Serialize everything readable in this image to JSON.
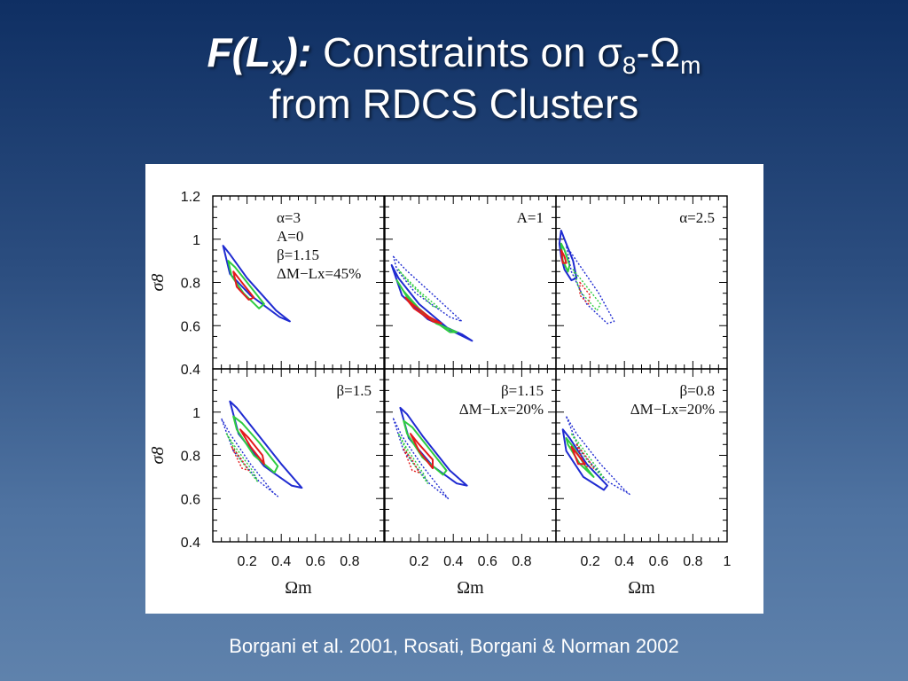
{
  "slide": {
    "title_emph": "F(L",
    "title_emph_sub": "x",
    "title_emph_end": "):",
    "title_text": " Constraints on σ",
    "title_sub1": "8",
    "title_dash": "-Ω",
    "title_sub2": "m",
    "title_line2": "from RDCS Clusters",
    "caption": "Borgani et al. 2001, Rosati, Borgani & Norman 2002"
  },
  "colors": {
    "confidence_inner": "#e41a1c",
    "confidence_mid": "#2ecc40",
    "confidence_outer": "#1f2bd1",
    "axis": "#000000"
  },
  "chart_data": {
    "type": "contour",
    "layout": "2x3 grid",
    "xlabel": "Ωm",
    "ylabel": "σ8",
    "xlim": [
      0,
      1
    ],
    "ylim": [
      0.4,
      1.2
    ],
    "xticklabels": [
      "0.2",
      "0.4",
      "0.6",
      "0.8"
    ],
    "xticklabels_last": [
      "0.2",
      "0.4",
      "0.6",
      "0.8",
      "1"
    ],
    "yticklabels": [
      "0.4",
      "0.6",
      "0.8",
      "1",
      "1.2"
    ],
    "yticklabels_lower": [
      "0.4",
      "0.6",
      "0.8",
      "1"
    ],
    "panels": [
      {
        "labels": [
          "α=3",
          "A=0",
          "β=1.15",
          "ΔM−Lx=45%"
        ],
        "label_pos": "top-left",
        "contours": [
          {
            "level": "outer",
            "style": "solid",
            "color": "#1f2bd1",
            "omega_m": [
              0.06,
              0.1,
              0.2,
              0.37,
              0.45,
              0.39,
              0.22,
              0.1,
              0.06
            ],
            "sigma8": [
              0.97,
              0.93,
              0.82,
              0.67,
              0.62,
              0.64,
              0.74,
              0.84,
              0.97
            ]
          },
          {
            "level": "mid",
            "style": "solid",
            "color": "#2ecc40",
            "omega_m": [
              0.09,
              0.13,
              0.22,
              0.3,
              0.27,
              0.18,
              0.11,
              0.09
            ],
            "sigma8": [
              0.9,
              0.87,
              0.78,
              0.7,
              0.68,
              0.75,
              0.83,
              0.9
            ]
          },
          {
            "level": "inner",
            "style": "solid",
            "color": "#e41a1c",
            "omega_m": [
              0.12,
              0.17,
              0.24,
              0.21,
              0.14,
              0.12
            ],
            "sigma8": [
              0.85,
              0.8,
              0.73,
              0.72,
              0.78,
              0.85
            ]
          }
        ]
      },
      {
        "labels": [
          "A=1"
        ],
        "label_pos": "top-right",
        "contours": [
          {
            "level": "outer",
            "style": "solid",
            "color": "#1f2bd1",
            "omega_m": [
              0.04,
              0.08,
              0.2,
              0.38,
              0.51,
              0.45,
              0.25,
              0.1,
              0.04
            ],
            "sigma8": [
              0.88,
              0.82,
              0.7,
              0.58,
              0.53,
              0.56,
              0.63,
              0.74,
              0.88
            ]
          },
          {
            "level": "mid",
            "style": "solid",
            "color": "#2ecc40",
            "omega_m": [
              0.07,
              0.11,
              0.22,
              0.38,
              0.42,
              0.3,
              0.14,
              0.07
            ],
            "sigma8": [
              0.81,
              0.76,
              0.66,
              0.57,
              0.57,
              0.61,
              0.72,
              0.81
            ]
          },
          {
            "level": "inner",
            "style": "solid",
            "color": "#e41a1c",
            "omega_m": [
              0.12,
              0.16,
              0.26,
              0.33,
              0.28,
              0.17,
              0.12
            ],
            "sigma8": [
              0.73,
              0.7,
              0.64,
              0.61,
              0.62,
              0.68,
              0.73
            ]
          },
          {
            "level": "outer-ref",
            "style": "dotted",
            "color": "#1f2bd1",
            "omega_m": [
              0.05,
              0.12,
              0.3,
              0.45,
              0.38,
              0.18,
              0.07,
              0.05
            ],
            "sigma8": [
              0.92,
              0.86,
              0.73,
              0.62,
              0.64,
              0.75,
              0.86,
              0.92
            ]
          },
          {
            "level": "mid-ref",
            "style": "dotted",
            "color": "#2ecc40",
            "omega_m": [
              0.08,
              0.14,
              0.28,
              0.32,
              0.2,
              0.1,
              0.08
            ],
            "sigma8": [
              0.86,
              0.8,
              0.69,
              0.68,
              0.76,
              0.84,
              0.86
            ]
          }
        ]
      },
      {
        "labels": [
          "α=2.5"
        ],
        "label_pos": "top-right",
        "contours": [
          {
            "level": "outer",
            "style": "solid",
            "color": "#1f2bd1",
            "omega_m": [
              0.03,
              0.05,
              0.1,
              0.12,
              0.09,
              0.05,
              0.03,
              0.02,
              0.03
            ],
            "sigma8": [
              1.04,
              1.0,
              0.9,
              0.82,
              0.81,
              0.86,
              0.92,
              0.98,
              1.04
            ]
          },
          {
            "level": "mid",
            "style": "solid",
            "color": "#2ecc40",
            "omega_m": [
              0.03,
              0.05,
              0.08,
              0.07,
              0.04,
              0.03
            ],
            "sigma8": [
              0.98,
              0.95,
              0.88,
              0.85,
              0.9,
              0.98
            ]
          },
          {
            "level": "inner",
            "style": "solid",
            "color": "#e41a1c",
            "omega_m": [
              0.03,
              0.05,
              0.06,
              0.04,
              0.03
            ],
            "sigma8": [
              0.95,
              0.92,
              0.89,
              0.89,
              0.95
            ]
          },
          {
            "level": "outer-ref",
            "style": "dotted",
            "color": "#1f2bd1",
            "omega_m": [
              0.06,
              0.12,
              0.25,
              0.34,
              0.3,
              0.18,
              0.09,
              0.06
            ],
            "sigma8": [
              0.97,
              0.9,
              0.75,
              0.62,
              0.61,
              0.7,
              0.85,
              0.97
            ]
          },
          {
            "level": "mid-ref",
            "style": "dotted",
            "color": "#2ecc40",
            "omega_m": [
              0.1,
              0.16,
              0.26,
              0.24,
              0.14,
              0.1
            ],
            "sigma8": [
              0.86,
              0.8,
              0.7,
              0.67,
              0.76,
              0.86
            ]
          },
          {
            "level": "inner-ref",
            "style": "dotted",
            "color": "#e41a1c",
            "omega_m": [
              0.14,
              0.2,
              0.19,
              0.14,
              0.14
            ],
            "sigma8": [
              0.8,
              0.74,
              0.7,
              0.74,
              0.8
            ]
          }
        ]
      },
      {
        "labels": [
          "β=1.5"
        ],
        "label_pos": "top-right",
        "contours": [
          {
            "level": "outer",
            "style": "solid",
            "color": "#1f2bd1",
            "omega_m": [
              0.1,
              0.14,
              0.24,
              0.4,
              0.52,
              0.46,
              0.3,
              0.15,
              0.1
            ],
            "sigma8": [
              1.05,
              1.02,
              0.92,
              0.76,
              0.65,
              0.66,
              0.75,
              0.9,
              1.05
            ]
          },
          {
            "level": "mid",
            "style": "solid",
            "color": "#2ecc40",
            "omega_m": [
              0.12,
              0.17,
              0.27,
              0.38,
              0.36,
              0.24,
              0.14,
              0.12
            ],
            "sigma8": [
              0.98,
              0.95,
              0.86,
              0.75,
              0.72,
              0.8,
              0.92,
              0.98
            ]
          },
          {
            "level": "inner",
            "style": "solid",
            "color": "#e41a1c",
            "omega_m": [
              0.16,
              0.21,
              0.29,
              0.3,
              0.22,
              0.16
            ],
            "sigma8": [
              0.92,
              0.88,
              0.8,
              0.76,
              0.84,
              0.92
            ]
          },
          {
            "level": "outer-ref",
            "style": "dotted",
            "color": "#1f2bd1",
            "omega_m": [
              0.05,
              0.1,
              0.22,
              0.35,
              0.38,
              0.27,
              0.12,
              0.05
            ],
            "sigma8": [
              0.97,
              0.9,
              0.76,
              0.63,
              0.61,
              0.68,
              0.82,
              0.97
            ]
          },
          {
            "level": "mid-ref",
            "style": "dotted",
            "color": "#2ecc40",
            "omega_m": [
              0.08,
              0.13,
              0.24,
              0.26,
              0.16,
              0.08
            ],
            "sigma8": [
              0.9,
              0.84,
              0.72,
              0.68,
              0.78,
              0.9
            ]
          },
          {
            "level": "inner-ref",
            "style": "dotted",
            "color": "#e41a1c",
            "omega_m": [
              0.11,
              0.16,
              0.21,
              0.17,
              0.11
            ],
            "sigma8": [
              0.84,
              0.79,
              0.73,
              0.74,
              0.84
            ]
          }
        ]
      },
      {
        "labels": [
          "β=1.15",
          "ΔM−Lx=20%"
        ],
        "label_pos": "top-right",
        "contours": [
          {
            "level": "outer",
            "style": "solid",
            "color": "#1f2bd1",
            "omega_m": [
              0.09,
              0.13,
              0.22,
              0.38,
              0.48,
              0.42,
              0.28,
              0.14,
              0.09
            ],
            "sigma8": [
              1.02,
              0.99,
              0.89,
              0.73,
              0.66,
              0.67,
              0.75,
              0.88,
              1.02
            ]
          },
          {
            "level": "mid",
            "style": "solid",
            "color": "#2ecc40",
            "omega_m": [
              0.11,
              0.16,
              0.25,
              0.36,
              0.34,
              0.22,
              0.13,
              0.11
            ],
            "sigma8": [
              0.96,
              0.93,
              0.84,
              0.73,
              0.71,
              0.79,
              0.9,
              0.96
            ]
          },
          {
            "level": "inner",
            "style": "solid",
            "color": "#e41a1c",
            "omega_m": [
              0.15,
              0.19,
              0.28,
              0.28,
              0.2,
              0.15
            ],
            "sigma8": [
              0.9,
              0.86,
              0.78,
              0.74,
              0.82,
              0.9
            ]
          },
          {
            "level": "outer-ref",
            "style": "dotted",
            "color": "#1f2bd1",
            "omega_m": [
              0.05,
              0.1,
              0.22,
              0.35,
              0.37,
              0.26,
              0.11,
              0.05
            ],
            "sigma8": [
              0.97,
              0.89,
              0.75,
              0.62,
              0.6,
              0.67,
              0.82,
              0.97
            ]
          },
          {
            "level": "mid-ref",
            "style": "dotted",
            "color": "#2ecc40",
            "omega_m": [
              0.08,
              0.13,
              0.23,
              0.25,
              0.15,
              0.08
            ],
            "sigma8": [
              0.9,
              0.83,
              0.71,
              0.67,
              0.78,
              0.9
            ]
          },
          {
            "level": "inner-ref",
            "style": "dotted",
            "color": "#e41a1c",
            "omega_m": [
              0.11,
              0.16,
              0.2,
              0.16,
              0.11
            ],
            "sigma8": [
              0.83,
              0.78,
              0.72,
              0.73,
              0.83
            ]
          }
        ]
      },
      {
        "labels": [
          "β=0.8",
          "ΔM−Lx=20%"
        ],
        "label_pos": "top-right",
        "contours": [
          {
            "level": "outer",
            "style": "solid",
            "color": "#1f2bd1",
            "omega_m": [
              0.04,
              0.08,
              0.18,
              0.3,
              0.28,
              0.16,
              0.06,
              0.04
            ],
            "sigma8": [
              0.92,
              0.88,
              0.76,
              0.66,
              0.64,
              0.7,
              0.82,
              0.92
            ]
          },
          {
            "level": "mid",
            "style": "solid",
            "color": "#2ecc40",
            "omega_m": [
              0.06,
              0.1,
              0.18,
              0.22,
              0.14,
              0.07,
              0.06
            ],
            "sigma8": [
              0.88,
              0.84,
              0.74,
              0.7,
              0.76,
              0.85,
              0.88
            ]
          },
          {
            "level": "inner",
            "style": "solid",
            "color": "#e41a1c",
            "omega_m": [
              0.09,
              0.13,
              0.17,
              0.13,
              0.09
            ],
            "sigma8": [
              0.84,
              0.8,
              0.76,
              0.76,
              0.84
            ]
          },
          {
            "level": "outer-ref",
            "style": "dotted",
            "color": "#1f2bd1",
            "omega_m": [
              0.06,
              0.12,
              0.26,
              0.4,
              0.43,
              0.3,
              0.14,
              0.06
            ],
            "sigma8": [
              0.98,
              0.9,
              0.76,
              0.64,
              0.62,
              0.68,
              0.82,
              0.98
            ]
          },
          {
            "level": "mid-ref",
            "style": "dotted",
            "color": "#2ecc40",
            "omega_m": [
              0.09,
              0.15,
              0.26,
              0.28,
              0.18,
              0.09
            ],
            "sigma8": [
              0.9,
              0.84,
              0.72,
              0.69,
              0.78,
              0.9
            ]
          },
          {
            "level": "inner-ref",
            "style": "dotted",
            "color": "#e41a1c",
            "omega_m": [
              0.12,
              0.18,
              0.22,
              0.17,
              0.12
            ],
            "sigma8": [
              0.85,
              0.79,
              0.74,
              0.75,
              0.85
            ]
          }
        ]
      }
    ]
  }
}
